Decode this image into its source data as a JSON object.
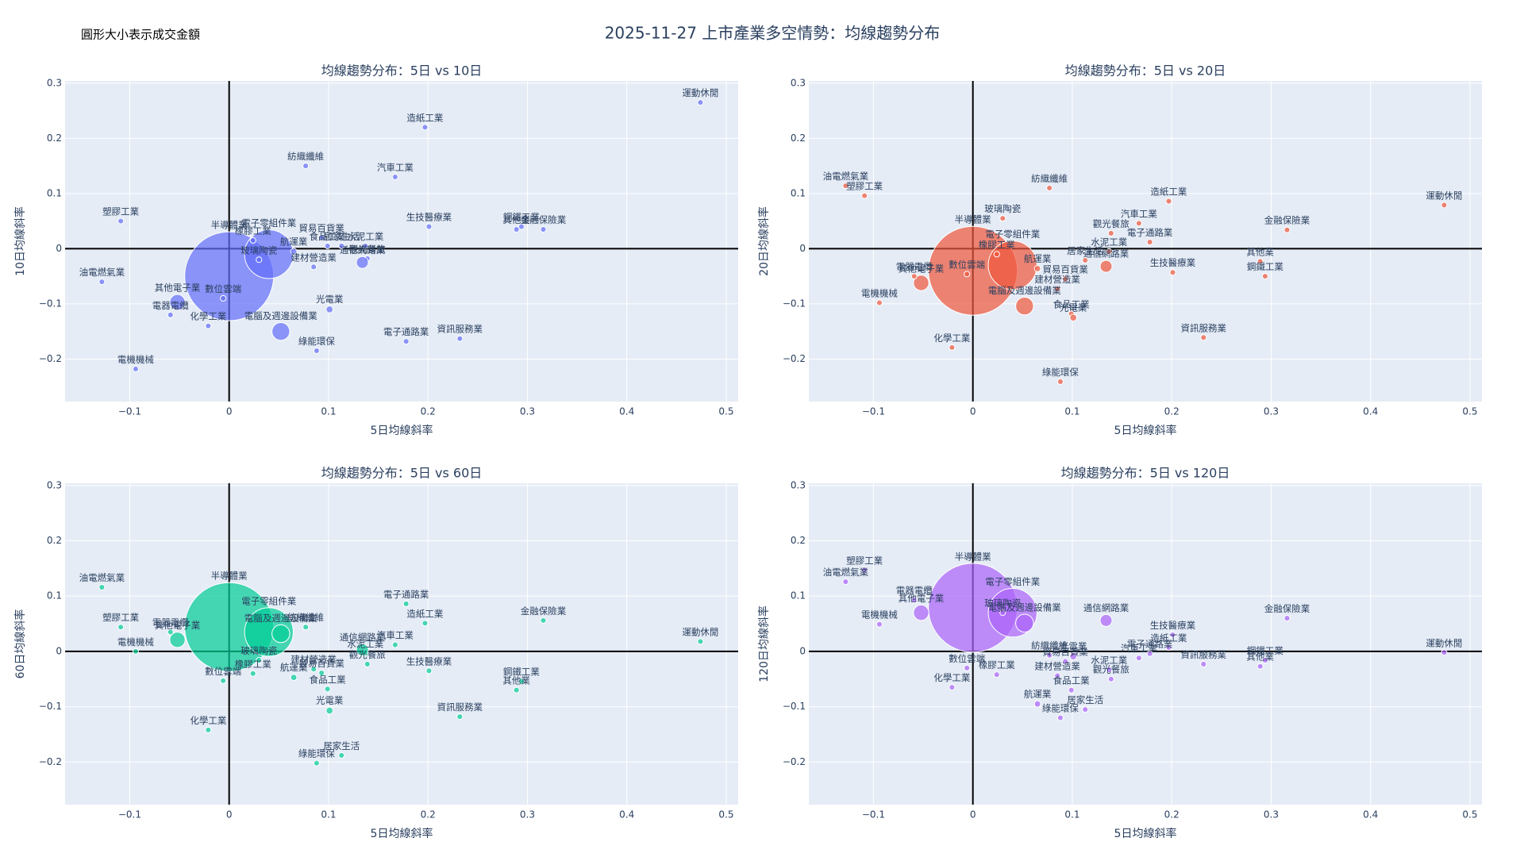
{
  "title": "2025-11-27 上市產業多空情勢：均線趨勢分布",
  "annotation": "圓形大小表示成交金額",
  "chart_data": [
    {
      "type": "scatter",
      "title": "均線趨勢分布：5日 vs 10日",
      "xlabel": "5日均線斜率",
      "ylabel": "10日均線斜率",
      "color": "#636efa",
      "labels": [
        "運動休閒",
        "造紙工業",
        "紡織纖維",
        "汽車工業",
        "塑膠工業",
        "鋼鐵工業",
        "其他業",
        "金融保險業",
        "生技醫療業",
        "半導體業",
        "電子零組件業",
        "橡膠工業",
        "玻璃陶瓷",
        "航運業",
        "貿易百貨業",
        "食品工業",
        "水泥工業",
        "電腦及週邊設備業",
        "光電業",
        "綠能環保",
        "電子通路業",
        "資訊服務業",
        "建材營造業",
        "觀光餐旅",
        "通信網路業",
        "油電燃氣業",
        "其他電子業",
        "電器電纜",
        "化學工業",
        "電機機械",
        "數位雲端",
        "居家生活"
      ],
      "x": [
        0.474,
        0.197,
        0.077,
        0.167,
        -0.109,
        0.294,
        0.289,
        0.316,
        0.201,
        0.0,
        0.04,
        0.024,
        0.03,
        0.065,
        0.093,
        0.099,
        0.137,
        0.052,
        0.101,
        0.088,
        0.178,
        0.232,
        0.085,
        0.139,
        0.134,
        -0.128,
        -0.052,
        -0.059,
        -0.021,
        -0.094,
        -0.006,
        0.113
      ],
      "y": [
        0.265,
        0.22,
        0.15,
        0.13,
        0.05,
        0.04,
        0.035,
        0.035,
        0.04,
        -0.05,
        -0.01,
        0.015,
        -0.02,
        -0.005,
        0.02,
        0.005,
        0.005,
        -0.15,
        -0.11,
        -0.185,
        -0.168,
        -0.163,
        -0.033,
        -0.018,
        -0.025,
        -0.06,
        -0.097,
        -0.12,
        -0.14,
        -0.218,
        -0.09,
        0.005
      ],
      "sizes": [
        0.4,
        0.4,
        0.4,
        0.4,
        0.4,
        0.4,
        0.4,
        0.4,
        0.4,
        100,
        30,
        0.4,
        0.4,
        0.5,
        0.4,
        0.4,
        0.4,
        4,
        0.6,
        0.4,
        0.4,
        0.4,
        0.4,
        0.4,
        1.8,
        0.4,
        3,
        0.4,
        0.4,
        0.4,
        0.4,
        0.4
      ],
      "xlim": [
        -0.165,
        0.512
      ],
      "ylim": [
        -0.277,
        0.304
      ],
      "xticks": [
        {
          "value": -0.1,
          "label": "−0.1"
        },
        0,
        0.1,
        0.2,
        0.3,
        0.4,
        0.5
      ],
      "yticks": [
        {
          "value": -0.2,
          "label": "−0.2"
        },
        {
          "value": -0.1,
          "label": "−0.1"
        },
        0,
        0.1,
        0.2,
        0.3
      ],
      "grid": true,
      "zeroline": true
    },
    {
      "type": "scatter",
      "title": "均線趨勢分布：5日 vs 20日",
      "xlabel": "5日均線斜率",
      "ylabel": "20日均線斜率",
      "color": "#ef553b",
      "labels": [
        "運動休閒",
        "造紙工業",
        "紡織纖維",
        "汽車工業",
        "塑膠工業",
        "鋼鐵工業",
        "其他業",
        "金融保險業",
        "生技醫療業",
        "半導體業",
        "電子零組件業",
        "橡膠工業",
        "玻璃陶瓷",
        "航運業",
        "貿易百貨業",
        "食品工業",
        "水泥工業",
        "電腦及週邊設備業",
        "光電業",
        "綠能環保",
        "電子通路業",
        "資訊服務業",
        "建材營造業",
        "觀光餐旅",
        "通信網路業",
        "油電燃氣業",
        "其他電子業",
        "電器電纜",
        "化學工業",
        "電機機械",
        "數位雲端",
        "居家生活"
      ],
      "x": [
        0.474,
        0.197,
        0.077,
        0.167,
        -0.109,
        0.294,
        0.289,
        0.316,
        0.201,
        0.0,
        0.04,
        0.024,
        0.03,
        0.065,
        0.093,
        0.099,
        0.137,
        0.052,
        0.101,
        0.088,
        0.178,
        0.232,
        0.085,
        0.139,
        0.134,
        -0.128,
        -0.052,
        -0.059,
        -0.021,
        -0.094,
        -0.006,
        0.113
      ],
      "y": [
        0.079,
        0.086,
        0.11,
        0.046,
        0.096,
        -0.05,
        -0.023,
        0.034,
        -0.043,
        -0.04,
        -0.03,
        -0.01,
        0.055,
        -0.036,
        -0.055,
        -0.118,
        -0.005,
        -0.104,
        -0.125,
        -0.241,
        0.012,
        -0.161,
        -0.073,
        0.028,
        -0.032,
        0.114,
        -0.062,
        -0.05,
        -0.179,
        -0.098,
        -0.046,
        -0.021
      ],
      "sizes": [
        0.4,
        0.4,
        0.4,
        0.4,
        0.4,
        0.4,
        0.4,
        0.4,
        0.4,
        100,
        30,
        0.4,
        0.4,
        0.5,
        0.4,
        0.4,
        0.4,
        4,
        0.6,
        0.4,
        0.4,
        0.4,
        0.4,
        0.4,
        1.8,
        0.4,
        3,
        0.4,
        0.4,
        0.4,
        0.4,
        0.4
      ],
      "xlim": [
        -0.165,
        0.512
      ],
      "ylim": [
        -0.277,
        0.304
      ],
      "xticks": [
        {
          "value": -0.1,
          "label": "−0.1"
        },
        0,
        0.1,
        0.2,
        0.3,
        0.4,
        0.5
      ],
      "yticks": [
        {
          "value": -0.2,
          "label": "−0.2"
        },
        {
          "value": -0.1,
          "label": "−0.1"
        },
        0,
        0.1,
        0.2,
        0.3
      ],
      "grid": true,
      "zeroline": true
    },
    {
      "type": "scatter",
      "title": "均線趨勢分布：5日 vs 60日",
      "xlabel": "5日均線斜率",
      "ylabel": "60日均線斜率",
      "color": "#00cc96",
      "labels": [
        "運動休閒",
        "造紙工業",
        "紡織纖維",
        "汽車工業",
        "塑膠工業",
        "鋼鐵工業",
        "其他業",
        "金融保險業",
        "生技醫療業",
        "半導體業",
        "電子零組件業",
        "橡膠工業",
        "玻璃陶瓷",
        "航運業",
        "貿易百貨業",
        "食品工業",
        "水泥工業",
        "電腦及週邊設備業",
        "光電業",
        "綠能環保",
        "電子通路業",
        "資訊服務業",
        "建材營造業",
        "觀光餐旅",
        "通信網路業",
        "油電燃氣業",
        "其他電子業",
        "電器電纜",
        "化學工業",
        "電機機械",
        "數位雲端",
        "居家生活"
      ],
      "x": [
        0.474,
        0.197,
        0.077,
        0.167,
        -0.109,
        0.294,
        0.289,
        0.316,
        0.201,
        0.0,
        0.04,
        0.024,
        0.03,
        0.065,
        0.093,
        0.099,
        0.137,
        0.052,
        0.101,
        0.088,
        0.178,
        0.232,
        0.085,
        0.139,
        0.134,
        -0.128,
        -0.052,
        -0.059,
        -0.021,
        -0.094,
        -0.006,
        0.113
      ],
      "y": [
        0.018,
        0.051,
        0.044,
        0.012,
        0.044,
        -0.054,
        -0.07,
        0.056,
        -0.035,
        0.044,
        0.035,
        -0.04,
        -0.016,
        -0.047,
        -0.039,
        -0.068,
        -0.004,
        0.032,
        -0.107,
        -0.202,
        0.086,
        -0.118,
        -0.032,
        -0.023,
        0.003,
        0.116,
        0.021,
        0.035,
        -0.142,
        0.0,
        -0.053,
        -0.188
      ],
      "sizes": [
        0.4,
        0.4,
        0.4,
        0.4,
        0.4,
        0.4,
        0.4,
        0.4,
        0.4,
        100,
        30,
        0.4,
        0.4,
        0.5,
        0.4,
        0.4,
        0.4,
        4,
        0.6,
        0.4,
        0.4,
        0.4,
        0.4,
        0.4,
        1.8,
        0.4,
        3,
        0.4,
        0.4,
        0.4,
        0.4,
        0.4
      ],
      "xlim": [
        -0.165,
        0.512
      ],
      "ylim": [
        -0.277,
        0.304
      ],
      "xticks": [
        {
          "value": -0.1,
          "label": "−0.1"
        },
        0,
        0.1,
        0.2,
        0.3,
        0.4,
        0.5
      ],
      "yticks": [
        {
          "value": -0.2,
          "label": "−0.2"
        },
        {
          "value": -0.1,
          "label": "−0.1"
        },
        0,
        0.1,
        0.2,
        0.3
      ],
      "grid": true,
      "zeroline": true
    },
    {
      "type": "scatter",
      "title": "均線趨勢分布：5日 vs 120日",
      "xlabel": "5日均線斜率",
      "ylabel": "120日均線斜率",
      "color": "#ab63fa",
      "labels": [
        "運動休閒",
        "造紙工業",
        "紡織纖維",
        "汽車工業",
        "塑膠工業",
        "鋼鐵工業",
        "其他業",
        "金融保險業",
        "生技醫療業",
        "半導體業",
        "電子零組件業",
        "橡膠工業",
        "玻璃陶瓷",
        "航運業",
        "貿易百貨業",
        "食品工業",
        "水泥工業",
        "電腦及週邊設備業",
        "光電業",
        "綠能環保",
        "電子通路業",
        "資訊服務業",
        "建材營造業",
        "觀光餐旅",
        "通信網路業",
        "油電燃氣業",
        "其他電子業",
        "電器電纜",
        "化學工業",
        "電機機械",
        "數位雲端",
        "居家生活"
      ],
      "x": [
        0.474,
        0.197,
        0.077,
        0.167,
        -0.109,
        0.294,
        0.289,
        0.316,
        0.201,
        0.0,
        0.04,
        0.024,
        0.03,
        0.065,
        0.093,
        0.099,
        0.137,
        0.052,
        0.101,
        0.088,
        0.178,
        0.232,
        0.085,
        0.139,
        0.134,
        -0.128,
        -0.052,
        -0.059,
        -0.021,
        -0.094,
        -0.006,
        0.113
      ],
      "y": [
        -0.002,
        0.007,
        -0.007,
        -0.012,
        0.147,
        -0.016,
        -0.027,
        0.06,
        0.03,
        0.079,
        0.07,
        -0.042,
        0.07,
        -0.095,
        -0.018,
        -0.07,
        -0.033,
        0.051,
        -0.009,
        -0.12,
        -0.004,
        -0.023,
        -0.044,
        -0.05,
        0.056,
        0.126,
        0.07,
        0.093,
        -0.065,
        0.049,
        -0.03,
        -0.105
      ],
      "sizes": [
        0.4,
        0.4,
        0.4,
        0.4,
        0.4,
        0.4,
        0.4,
        0.4,
        0.4,
        100,
        30,
        0.4,
        0.4,
        0.5,
        0.4,
        0.4,
        0.4,
        4,
        0.6,
        0.4,
        0.4,
        0.4,
        0.4,
        0.4,
        1.8,
        0.4,
        3,
        0.4,
        0.4,
        0.4,
        0.4,
        0.4
      ],
      "xlim": [
        -0.165,
        0.512
      ],
      "ylim": [
        -0.277,
        0.304
      ],
      "xticks": [
        {
          "value": -0.1,
          "label": "−0.1"
        },
        0,
        0.1,
        0.2,
        0.3,
        0.4,
        0.5
      ],
      "yticks": [
        {
          "value": -0.2,
          "label": "−0.2"
        },
        {
          "value": -0.1,
          "label": "−0.1"
        },
        0,
        0.1,
        0.2,
        0.3
      ],
      "grid": true,
      "zeroline": true
    }
  ]
}
